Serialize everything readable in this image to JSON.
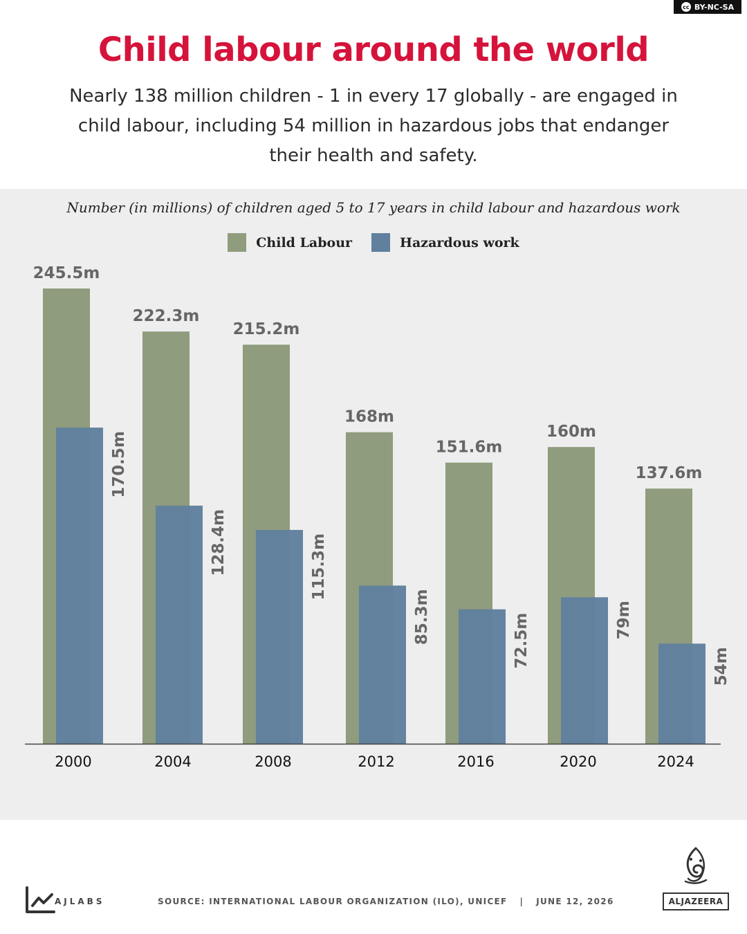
{
  "license": {
    "text": "BY-NC-SA",
    "icon": "cc-icon"
  },
  "header": {
    "title": "Child labour around the world",
    "subtitle": "Nearly 138 million children - 1 in every 17 globally - are engaged in child labour, including 54 million in hazardous jobs that endanger their health and safety."
  },
  "chart_data": {
    "type": "bar",
    "title": "Number (in millions) of children aged 5 to 17 years in child labour and hazardous work",
    "categories": [
      "2000",
      "2004",
      "2008",
      "2012",
      "2016",
      "2020",
      "2024"
    ],
    "series": [
      {
        "name": "Child Labour",
        "color": "#8f9c7d",
        "values": [
          245.5,
          222.3,
          215.2,
          168,
          151.6,
          160,
          137.6
        ],
        "labels": [
          "245.5m",
          "222.3m",
          "215.2m",
          "168m",
          "151.6m",
          "160m",
          "137.6m"
        ]
      },
      {
        "name": "Hazardous work",
        "color": "#60809e",
        "values": [
          170.5,
          128.4,
          115.3,
          85.3,
          72.5,
          79,
          54
        ],
        "labels": [
          "170.5m",
          "128.4m",
          "115.3m",
          "85.3m",
          "72.5m",
          "79m",
          "54m"
        ]
      }
    ],
    "ylim": [
      0,
      245.5
    ],
    "grid": false,
    "legend_position": "top-center"
  },
  "footer": {
    "brand": "AJLABS",
    "source": "SOURCE: INTERNATIONAL LABOUR ORGANIZATION (ILO), UNICEF",
    "separator": "|",
    "date": "JUNE 12, 2026",
    "publisher": "ALJAZEERA"
  }
}
